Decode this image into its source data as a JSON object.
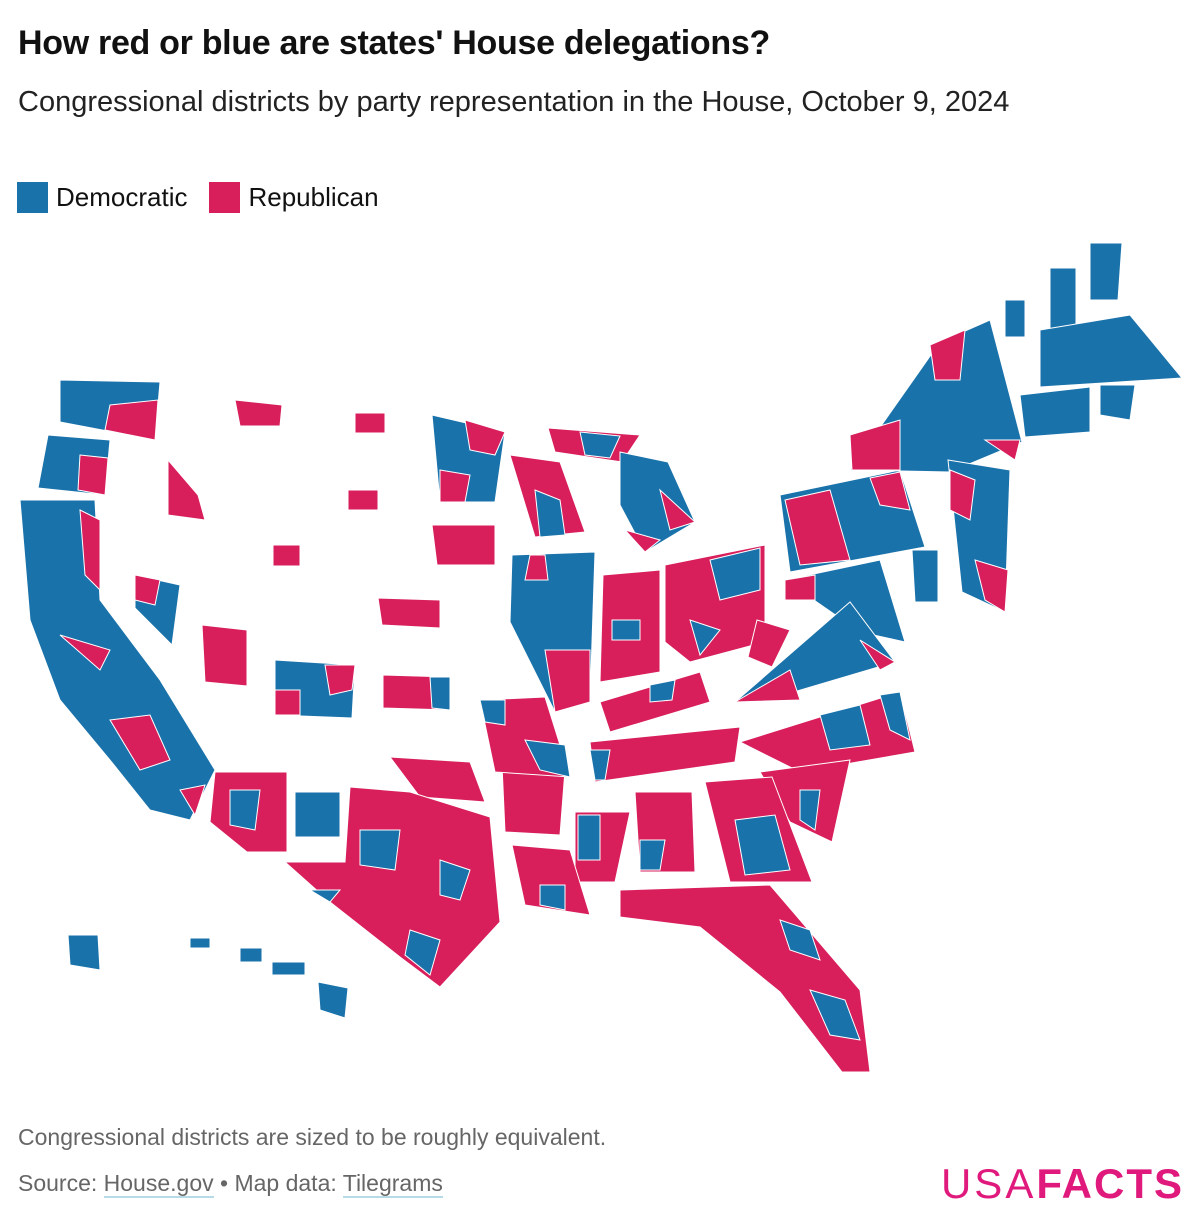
{
  "title": "How red or blue are states' House delegations?",
  "subtitle": "Congressional districts by party representation in the House, October 9, 2024",
  "legend": [
    {
      "label": "Democratic",
      "color": "#1a72ab"
    },
    {
      "label": "Republican",
      "color": "#d81e5b"
    }
  ],
  "note": "Congressional districts are sized to be roughly equivalent.",
  "source": {
    "prefix": "Source:",
    "link1": "House.gov",
    "sep": "•",
    "middle": "Map data:",
    "link2": "Tilegrams"
  },
  "logo": {
    "light": "USA",
    "bold": "FACTS"
  }
}
